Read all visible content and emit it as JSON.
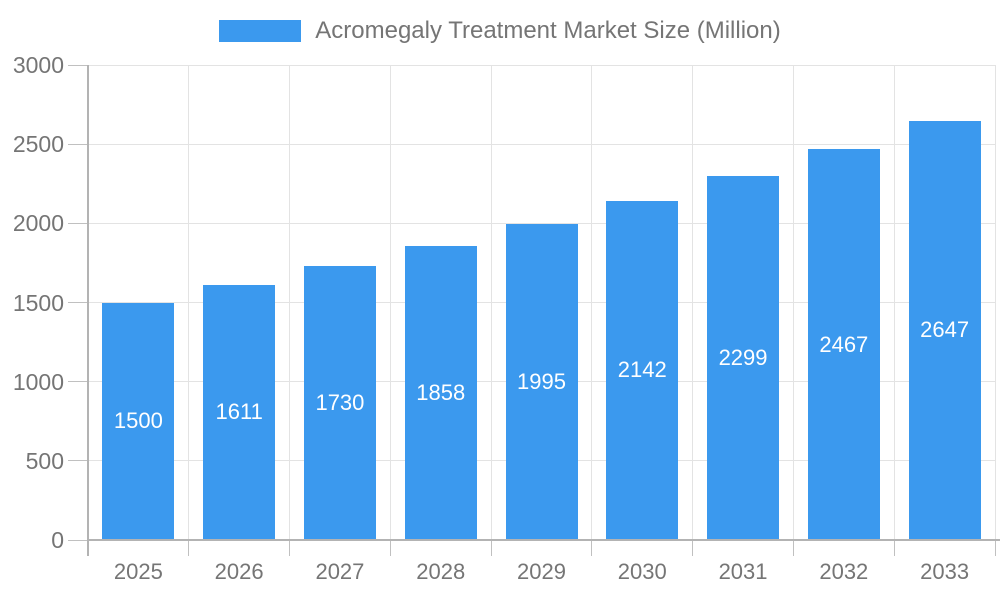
{
  "legend": {
    "label": "Acromegaly Treatment Market Size (Million)",
    "swatch_color": "#3b99ee"
  },
  "chart_data": {
    "type": "bar",
    "title": "Acromegaly Treatment Market Size (Million)",
    "categories": [
      "2025",
      "2026",
      "2027",
      "2028",
      "2029",
      "2030",
      "2031",
      "2032",
      "2033"
    ],
    "values": [
      1500,
      1611,
      1730,
      1858,
      1995,
      2142,
      2299,
      2467,
      2647
    ],
    "xlabel": "",
    "ylabel": "",
    "ylim": [
      0,
      3000
    ],
    "y_ticks": [
      0,
      500,
      1000,
      1500,
      2000,
      2500,
      3000
    ],
    "bar_color": "#3b99ee",
    "value_label_color": "#ffffff",
    "value_label_position": "inside-center",
    "axis_text_color": "#757575",
    "grid": true,
    "legend_position": "top"
  }
}
